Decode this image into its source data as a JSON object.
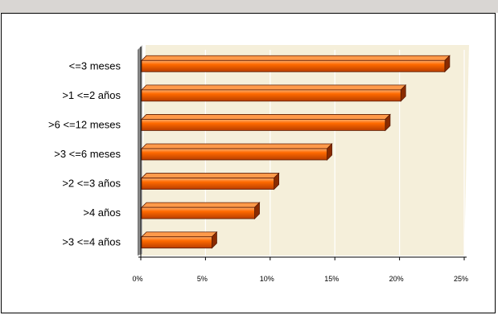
{
  "chart_data": {
    "type": "bar",
    "orientation": "horizontal",
    "categories": [
      "<=3 meses",
      ">1 <=2 años",
      ">6 <=12 meses",
      ">3 <=6  meses",
      ">2 <=3  años",
      ">4 años",
      ">3 <=4  años"
    ],
    "values": [
      23.5,
      20.1,
      18.9,
      14.4,
      10.3,
      8.8,
      5.5
    ],
    "xlim": [
      0,
      25
    ],
    "xticks": [
      "0%",
      "5%",
      "10%",
      "15%",
      "20%",
      "25%"
    ],
    "title": "",
    "xlabel": "",
    "ylabel": "",
    "grid": true,
    "legend": "none",
    "colors": {
      "bar_front": "#ff6a00",
      "bar_dark": "#8a2b00",
      "plot_bg": "#f5efda",
      "side_wall": "#8c8c8c",
      "gridline": "#ffffff"
    }
  }
}
